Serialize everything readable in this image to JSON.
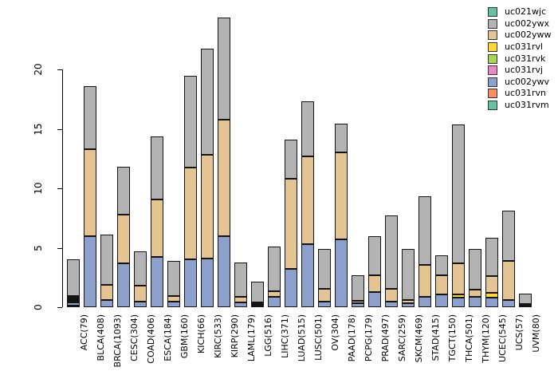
{
  "chart_data": {
    "type": "bar",
    "stacked": true,
    "title": "",
    "xlabel": "",
    "ylabel": "",
    "ylim": [
      0,
      24.5
    ],
    "yticks": [
      0,
      5,
      10,
      15,
      20
    ],
    "grid": false,
    "legend_position": "top-right",
    "series": [
      {
        "id": "uc021wjc",
        "label": "uc021wjc",
        "color": "#66C2A5"
      },
      {
        "id": "uc002ywx",
        "label": "uc002ywx",
        "color": "#B3B3B3"
      },
      {
        "id": "uc002yww",
        "label": "uc002yww",
        "color": "#E5C494"
      },
      {
        "id": "uc031rvl",
        "label": "uc031rvl",
        "color": "#FFD92F"
      },
      {
        "id": "uc031rvk",
        "label": "uc031rvk",
        "color": "#A6D854"
      },
      {
        "id": "uc031rvj",
        "label": "uc031rvj",
        "color": "#E78AC3"
      },
      {
        "id": "uc002ywv",
        "label": "uc002ywv",
        "color": "#8DA0CB"
      },
      {
        "id": "uc031rvn",
        "label": "uc031rvn",
        "color": "#FC8D62"
      },
      {
        "id": "uc031rvm",
        "label": "uc031rvm",
        "color": "#66C2A5"
      }
    ],
    "stack_order": [
      "uc031rvm",
      "uc031rvn",
      "uc002ywv",
      "uc031rvj",
      "uc031rvk",
      "uc031rvl",
      "uc002yww",
      "uc002ywx",
      "uc021wjc"
    ],
    "categories": [
      "ACC(79)",
      "BLCA(408)",
      "BRCA(1093)",
      "CESC(304)",
      "COAD(406)",
      "ESCA(184)",
      "GBM(160)",
      "KICH(66)",
      "KIRC(533)",
      "KIRP(290)",
      "LAML(179)",
      "LGG(516)",
      "LIHC(371)",
      "LUAD(515)",
      "LUSC(501)",
      "OV(304)",
      "PAAD(178)",
      "PCPG(179)",
      "PRAD(497)",
      "SARC(259)",
      "SKCM(469)",
      "STAD(415)",
      "TGCT(150)",
      "THCA(501)",
      "THYM(120)",
      "UCEC(545)",
      "UCS(57)",
      "UVM(80)"
    ],
    "bars": [
      {
        "category": "ACC(79)",
        "segments": {
          "uc031rvn": 0.05,
          "uc002ywv": 0.25,
          "uc031rvj": 0.04,
          "uc031rvk": 0.04,
          "uc031rvl": 0.04,
          "uc002yww": 0.05,
          "uc002ywx": 3.1
        }
      },
      {
        "category": "BLCA(408)",
        "segments": {
          "uc002ywv": 6.0,
          "uc002yww": 7.3,
          "uc002ywx": 5.3
        }
      },
      {
        "category": "BRCA(1093)",
        "segments": {
          "uc002ywv": 0.6,
          "uc002yww": 1.3,
          "uc002ywx": 4.2
        }
      },
      {
        "category": "CESC(304)",
        "segments": {
          "uc002ywv": 3.7,
          "uc002yww": 4.1,
          "uc002ywx": 4.0
        }
      },
      {
        "category": "COAD(406)",
        "segments": {
          "uc002ywv": 0.45,
          "uc002yww": 1.35,
          "uc002ywx": 2.9
        }
      },
      {
        "category": "ESCA(184)",
        "segments": {
          "uc002ywv": 4.2,
          "uc002yww": 4.8,
          "uc002ywx": 5.3
        }
      },
      {
        "category": "GBM(160)",
        "segments": {
          "uc002ywv": 0.5,
          "uc002yww": 0.45,
          "uc002ywx": 2.95
        }
      },
      {
        "category": "KICH(66)",
        "segments": {
          "uc002ywv": 4.0,
          "uc002yww": 7.7,
          "uc002ywx": 7.7
        }
      },
      {
        "category": "KIRC(533)",
        "segments": {
          "uc002ywv": 4.1,
          "uc002yww": 8.7,
          "uc002ywx": 8.9
        }
      },
      {
        "category": "KIRP(290)",
        "segments": {
          "uc002ywv": 6.0,
          "uc002yww": 9.8,
          "uc002ywx": 8.6
        }
      },
      {
        "category": "LAML(179)",
        "segments": {
          "uc002ywv": 0.4,
          "uc002yww": 0.5,
          "uc002ywx": 2.9
        }
      },
      {
        "category": "LGG(516)",
        "segments": {
          "uc031rvn": 0.1,
          "uc002ywv": 0.15,
          "uc002yww": 0.1,
          "uc002ywx": 1.75
        }
      },
      {
        "category": "LIHC(371)",
        "segments": {
          "uc002ywv": 0.9,
          "uc002yww": 0.45,
          "uc002ywx": 3.75
        }
      },
      {
        "category": "LUAD(515)",
        "segments": {
          "uc002ywv": 3.2,
          "uc002yww": 7.6,
          "uc002ywx": 3.3
        }
      },
      {
        "category": "LUSC(501)",
        "segments": {
          "uc002ywv": 5.3,
          "uc002yww": 7.4,
          "uc002ywx": 4.6
        }
      },
      {
        "category": "OV(304)",
        "segments": {
          "uc002ywv": 0.45,
          "uc002yww": 1.1,
          "uc002ywx": 3.35
        }
      },
      {
        "category": "PAAD(178)",
        "segments": {
          "uc002ywv": 5.7,
          "uc002yww": 7.3,
          "uc002ywx": 2.4
        }
      },
      {
        "category": "PCPG(179)",
        "segments": {
          "uc002ywv": 0.35,
          "uc002yww": 0.2,
          "uc002ywx": 2.15
        }
      },
      {
        "category": "PRAD(497)",
        "segments": {
          "uc002ywv": 1.3,
          "uc002yww": 1.4,
          "uc002ywx": 3.3
        }
      },
      {
        "category": "SARC(259)",
        "segments": {
          "uc002ywv": 0.45,
          "uc002yww": 1.1,
          "uc002ywx": 6.15
        }
      },
      {
        "category": "SKCM(469)",
        "segments": {
          "uc002ywv": 0.35,
          "uc002yww": 0.25,
          "uc002ywx": 4.3
        }
      },
      {
        "category": "STAD(415)",
        "segments": {
          "uc002ywv": 0.9,
          "uc002yww": 2.7,
          "uc002ywx": 5.8
        }
      },
      {
        "category": "TGCT(150)",
        "segments": {
          "uc002ywv": 1.1,
          "uc002yww": 1.6,
          "uc002ywx": 1.7
        }
      },
      {
        "category": "THCA(501)",
        "segments": {
          "uc002ywv": 0.8,
          "uc031rvl": 0.3,
          "uc002yww": 2.6,
          "uc002ywx": 11.7
        }
      },
      {
        "category": "THYM(120)",
        "segments": {
          "uc002ywv": 0.9,
          "uc002yww": 0.6,
          "uc002ywx": 3.4
        }
      },
      {
        "category": "UCEC(545)",
        "segments": {
          "uc002ywv": 0.8,
          "uc031rvl": 0.4,
          "uc002yww": 1.4,
          "uc002ywx": 3.2
        }
      },
      {
        "category": "UCS(57)",
        "segments": {
          "uc002ywv": 0.6,
          "uc002yww": 3.3,
          "uc002ywx": 4.2
        }
      },
      {
        "category": "UVM(80)",
        "segments": {
          "uc002ywv": 0.05,
          "uc002yww": 0.05,
          "uc002ywx": 0.9
        }
      }
    ]
  },
  "layout_colors": {
    "axis": "#000000",
    "bar_border": "#141414",
    "background": "#ffffff"
  }
}
